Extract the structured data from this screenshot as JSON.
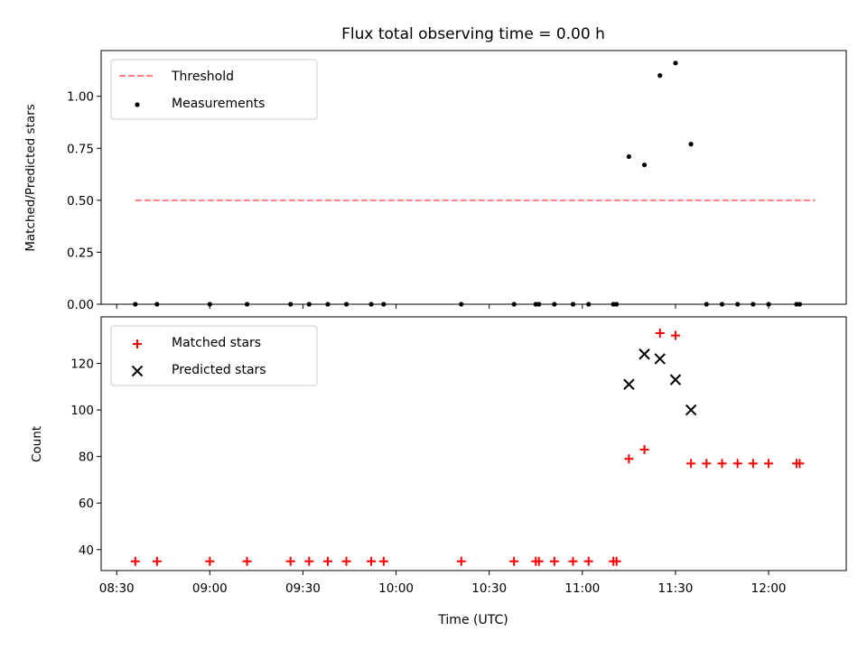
{
  "figure": {
    "title": "Flux total observing time = 0.00 h",
    "xlabel": "Time (UTC)"
  },
  "chart_data": [
    {
      "type": "scatter",
      "title": "Flux total observing time = 0.00 h",
      "xlabel": "",
      "ylabel": "Matched/Predicted stars",
      "xlim": [
        "08:25",
        "12:25"
      ],
      "ylim": [
        0,
        1.22
      ],
      "x_ticks": [
        "08:30",
        "09:00",
        "09:30",
        "10:00",
        "10:30",
        "11:00",
        "11:30",
        "12:00"
      ],
      "y_ticks": [
        "0.00",
        "0.25",
        "0.50",
        "0.75",
        "1.00"
      ],
      "legend": "top-left",
      "grid": false,
      "series": [
        {
          "name": "Threshold",
          "kind": "line",
          "style": "dashed",
          "color": "#ff7f7f",
          "x": [
            "08:36",
            "12:15"
          ],
          "y": [
            0.5,
            0.5
          ]
        },
        {
          "name": "Measurements",
          "kind": "scatter",
          "marker": "dot",
          "color": "#000000",
          "x": [
            "08:36",
            "08:43",
            "09:00",
            "09:12",
            "09:26",
            "09:32",
            "09:38",
            "09:44",
            "09:52",
            "09:56",
            "10:21",
            "10:38",
            "10:45",
            "10:46",
            "10:51",
            "10:57",
            "11:02",
            "11:10",
            "11:11",
            "11:15",
            "11:20",
            "11:25",
            "11:30",
            "11:35",
            "11:40",
            "11:45",
            "11:50",
            "11:55",
            "12:00",
            "12:09",
            "12:10"
          ],
          "y": [
            0,
            0,
            0,
            0,
            0,
            0,
            0,
            0,
            0,
            0,
            0,
            0,
            0,
            0,
            0,
            0,
            0,
            0,
            0,
            0.71,
            0.67,
            1.1,
            1.16,
            0.77,
            0,
            0,
            0,
            0,
            0,
            0,
            0
          ]
        }
      ]
    },
    {
      "type": "scatter",
      "title": "",
      "xlabel": "Time (UTC)",
      "ylabel": "Count",
      "xlim": [
        "08:25",
        "12:25"
      ],
      "ylim": [
        31,
        140
      ],
      "x_ticks": [
        "08:30",
        "09:00",
        "09:30",
        "10:00",
        "10:30",
        "11:00",
        "11:30",
        "12:00"
      ],
      "y_ticks": [
        "40",
        "60",
        "80",
        "100",
        "120"
      ],
      "legend": "top-left",
      "grid": false,
      "series": [
        {
          "name": "Matched stars",
          "kind": "scatter",
          "marker": "plus",
          "color": "#ff0000",
          "x": [
            "08:36",
            "08:43",
            "09:00",
            "09:12",
            "09:26",
            "09:32",
            "09:38",
            "09:44",
            "09:52",
            "09:56",
            "10:21",
            "10:38",
            "10:45",
            "10:46",
            "10:51",
            "10:57",
            "11:02",
            "11:10",
            "11:11",
            "11:15",
            "11:20",
            "11:25",
            "11:30",
            "11:35",
            "11:40",
            "11:45",
            "11:50",
            "11:55",
            "12:00",
            "12:09",
            "12:10"
          ],
          "y": [
            35,
            35,
            35,
            35,
            35,
            35,
            35,
            35,
            35,
            35,
            35,
            35,
            35,
            35,
            35,
            35,
            35,
            35,
            35,
            79,
            83,
            133,
            132,
            77,
            77,
            77,
            77,
            77,
            77,
            77,
            77
          ]
        },
        {
          "name": "Predicted stars",
          "kind": "scatter",
          "marker": "x",
          "color": "#000000",
          "x": [
            "11:15",
            "11:20",
            "11:25",
            "11:30",
            "11:35"
          ],
          "y": [
            111,
            124,
            122,
            113,
            100
          ]
        }
      ]
    }
  ]
}
